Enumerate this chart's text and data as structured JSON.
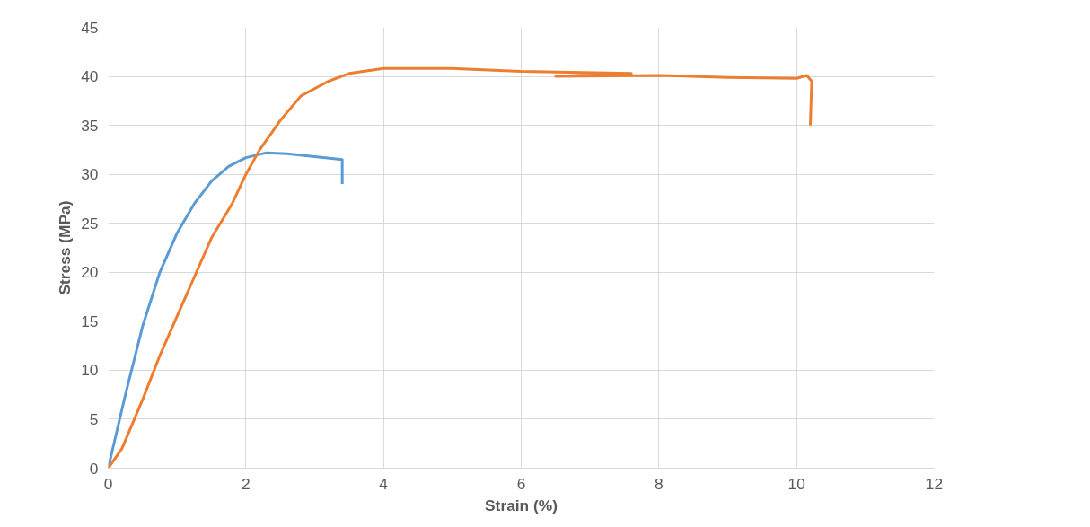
{
  "chart_data": {
    "type": "line",
    "xlabel": "Strain (%)",
    "ylabel": "Stress (MPa)",
    "xlim": [
      0,
      12
    ],
    "ylim": [
      0,
      45
    ],
    "xticks": [
      0,
      2,
      4,
      6,
      8,
      10,
      12
    ],
    "yticks": [
      0,
      5,
      10,
      15,
      20,
      25,
      30,
      35,
      40,
      45
    ],
    "grid": true,
    "series": [
      {
        "color": "#5b9bd5",
        "x": [
          0,
          0.1,
          0.25,
          0.5,
          0.75,
          1,
          1.25,
          1.5,
          1.75,
          2,
          2.3,
          2.6,
          3,
          3.4,
          3.4
        ],
        "values": [
          0,
          3,
          7.5,
          14.5,
          20,
          24,
          27,
          29.3,
          30.8,
          31.7,
          32.2,
          32.1,
          31.8,
          31.5,
          29
        ]
      },
      {
        "color": "#ed7d31",
        "x": [
          0,
          0.1,
          0.2,
          0.35,
          0.5,
          0.75,
          1,
          1.25,
          1.5,
          1.8,
          1.9,
          2,
          2.2,
          2.35,
          2.5,
          2.8,
          3.2,
          3.5,
          4,
          5,
          6,
          7.6,
          6.5,
          8,
          9,
          10,
          10.15,
          10.22,
          10.2
        ],
        "values": [
          0,
          1,
          2,
          4.5,
          7,
          11.5,
          15.5,
          19.5,
          23.5,
          27,
          28.5,
          30,
          32.5,
          34,
          35.5,
          38,
          39.5,
          40.3,
          40.8,
          40.8,
          40.5,
          40.3,
          40.0,
          40.1,
          39.9,
          39.8,
          40.1,
          39.5,
          35
        ]
      }
    ]
  }
}
